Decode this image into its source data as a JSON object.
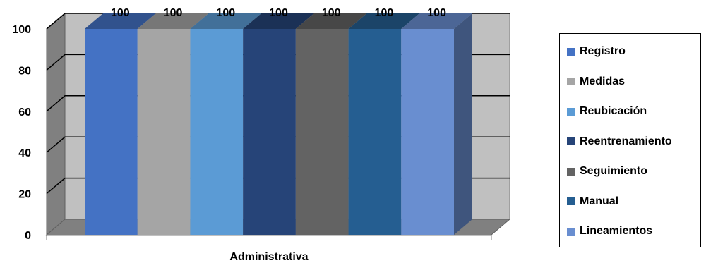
{
  "chart_data": {
    "type": "bar",
    "categories": [
      "Administrativa"
    ],
    "series": [
      {
        "name": "Registro",
        "values": [
          100
        ],
        "color": "#4472C4"
      },
      {
        "name": "Medidas",
        "values": [
          100
        ],
        "color": "#A5A5A5"
      },
      {
        "name": "Reubicación",
        "values": [
          100
        ],
        "color": "#5B9BD5"
      },
      {
        "name": "Reentrenamiento",
        "values": [
          100
        ],
        "color": "#264478"
      },
      {
        "name": "Seguimiento",
        "values": [
          100
        ],
        "color": "#636363"
      },
      {
        "name": "Manual",
        "values": [
          100
        ],
        "color": "#255E91"
      },
      {
        "name": "Lineamientos",
        "values": [
          100
        ],
        "color": "#698ED0"
      }
    ],
    "ylim": [
      0,
      100
    ],
    "yticks": [
      0,
      20,
      40,
      60,
      80,
      100
    ],
    "title": "",
    "xlabel": "",
    "ylabel": "",
    "legend": "right",
    "grid": true,
    "style": "3d-clustered-column",
    "data_labels": true
  }
}
